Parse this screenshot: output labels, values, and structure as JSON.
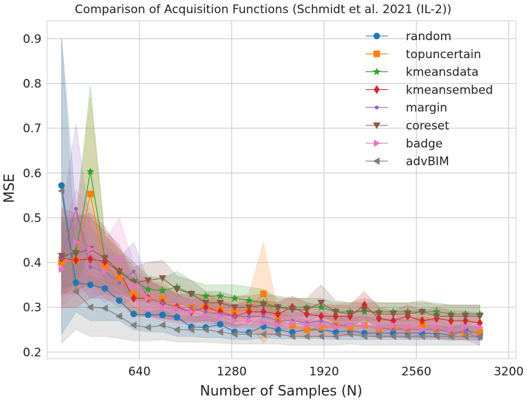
{
  "chart_data": {
    "type": "line",
    "title": "Comparison of Acquisition Functions (Schmidt et al. 2021 (IL-2))",
    "xlabel": "Number of Samples (N)",
    "ylabel": "MSE",
    "xlim": [
      0,
      3250
    ],
    "ylim": [
      0.185,
      0.94
    ],
    "xticks": [
      640,
      1280,
      1920,
      2560,
      3200
    ],
    "yticks": [
      0.2,
      0.3,
      0.4,
      0.5,
      0.6,
      0.7,
      0.8,
      0.9
    ],
    "grid": true,
    "legend_position": "top-right",
    "x": [
      100,
      200,
      300,
      400,
      500,
      600,
      700,
      800,
      900,
      1000,
      1100,
      1200,
      1300,
      1400,
      1500,
      1600,
      1700,
      1800,
      1900,
      2000,
      2100,
      2200,
      2300,
      2400,
      2500,
      2600,
      2700,
      2800,
      2900,
      3000
    ],
    "series": [
      {
        "name": "random",
        "color": "#1f77b4",
        "marker": "circle",
        "values": [
          0.572,
          0.355,
          0.35,
          0.342,
          0.315,
          0.285,
          0.283,
          0.283,
          0.278,
          0.256,
          0.255,
          0.262,
          0.245,
          0.244,
          0.257,
          0.25,
          0.244,
          0.25,
          0.25,
          0.245,
          0.248,
          0.242,
          0.243,
          0.242,
          0.243,
          0.242,
          0.242,
          0.238,
          0.248,
          0.24
        ],
        "lower": [
          0.24,
          0.29,
          0.27,
          0.27,
          0.27,
          0.25,
          0.245,
          0.245,
          0.235,
          0.235,
          0.232,
          0.232,
          0.228,
          0.228,
          0.232,
          0.23,
          0.23,
          0.23,
          0.23,
          0.228,
          0.228,
          0.228,
          0.228,
          0.228,
          0.228,
          0.228,
          0.228,
          0.226,
          0.228,
          0.226
        ],
        "upper": [
          0.905,
          0.52,
          0.42,
          0.4,
          0.36,
          0.33,
          0.32,
          0.32,
          0.31,
          0.28,
          0.28,
          0.29,
          0.26,
          0.26,
          0.28,
          0.27,
          0.26,
          0.27,
          0.27,
          0.26,
          0.265,
          0.26,
          0.26,
          0.26,
          0.26,
          0.26,
          0.26,
          0.255,
          0.265,
          0.255
        ]
      },
      {
        "name": "topuncertain",
        "color": "#ff7f0e",
        "marker": "square",
        "values": [
          0.4,
          0.405,
          0.553,
          0.39,
          0.365,
          0.33,
          0.32,
          0.318,
          0.3,
          0.3,
          0.3,
          0.295,
          0.29,
          0.295,
          0.33,
          0.27,
          0.26,
          0.25,
          0.255,
          0.26,
          0.255,
          0.26,
          0.25,
          0.255,
          0.25,
          0.26,
          0.25,
          0.245,
          0.24,
          0.245
        ],
        "lower": [
          0.33,
          0.33,
          0.36,
          0.32,
          0.31,
          0.28,
          0.28,
          0.28,
          0.27,
          0.27,
          0.27,
          0.265,
          0.26,
          0.26,
          0.22,
          0.25,
          0.24,
          0.23,
          0.235,
          0.24,
          0.235,
          0.24,
          0.23,
          0.235,
          0.23,
          0.24,
          0.23,
          0.228,
          0.226,
          0.228
        ],
        "upper": [
          0.47,
          0.48,
          0.77,
          0.46,
          0.42,
          0.38,
          0.36,
          0.355,
          0.33,
          0.33,
          0.33,
          0.325,
          0.32,
          0.33,
          0.445,
          0.29,
          0.28,
          0.27,
          0.275,
          0.28,
          0.275,
          0.28,
          0.27,
          0.275,
          0.27,
          0.28,
          0.27,
          0.262,
          0.255,
          0.262
        ]
      },
      {
        "name": "kmeansdata",
        "color": "#2ca02c",
        "marker": "star",
        "values": [
          0.41,
          0.425,
          0.603,
          0.41,
          0.382,
          0.36,
          0.34,
          0.337,
          0.345,
          0.33,
          0.325,
          0.325,
          0.32,
          0.315,
          0.31,
          0.3,
          0.3,
          0.3,
          0.3,
          0.29,
          0.29,
          0.29,
          0.29,
          0.29,
          0.29,
          0.29,
          0.29,
          0.285,
          0.285,
          0.285
        ],
        "lower": [
          0.34,
          0.35,
          0.43,
          0.36,
          0.34,
          0.32,
          0.31,
          0.31,
          0.31,
          0.3,
          0.3,
          0.3,
          0.295,
          0.29,
          0.285,
          0.28,
          0.28,
          0.28,
          0.28,
          0.27,
          0.27,
          0.27,
          0.27,
          0.27,
          0.27,
          0.27,
          0.27,
          0.265,
          0.265,
          0.265
        ],
        "upper": [
          0.49,
          0.5,
          0.795,
          0.46,
          0.43,
          0.4,
          0.37,
          0.365,
          0.38,
          0.36,
          0.35,
          0.35,
          0.35,
          0.345,
          0.34,
          0.32,
          0.32,
          0.32,
          0.32,
          0.31,
          0.31,
          0.31,
          0.31,
          0.31,
          0.31,
          0.31,
          0.31,
          0.305,
          0.305,
          0.305
        ]
      },
      {
        "name": "kmeansembed",
        "color": "#d62728",
        "marker": "diamond",
        "values": [
          0.41,
          0.405,
          0.408,
          0.402,
          0.38,
          0.32,
          0.32,
          0.31,
          0.3,
          0.29,
          0.3,
          0.29,
          0.28,
          0.29,
          0.29,
          0.285,
          0.3,
          0.285,
          0.28,
          0.28,
          0.28,
          0.305,
          0.275,
          0.27,
          0.28,
          0.27,
          0.275,
          0.27,
          0.27,
          0.265
        ],
        "lower": [
          0.3,
          0.3,
          0.32,
          0.33,
          0.32,
          0.28,
          0.28,
          0.275,
          0.27,
          0.265,
          0.27,
          0.265,
          0.255,
          0.265,
          0.265,
          0.26,
          0.275,
          0.26,
          0.255,
          0.255,
          0.255,
          0.275,
          0.25,
          0.248,
          0.255,
          0.248,
          0.25,
          0.248,
          0.248,
          0.245
        ],
        "upper": [
          0.52,
          0.51,
          0.5,
          0.47,
          0.44,
          0.36,
          0.36,
          0.345,
          0.33,
          0.315,
          0.33,
          0.315,
          0.305,
          0.315,
          0.315,
          0.31,
          0.325,
          0.31,
          0.305,
          0.305,
          0.305,
          0.335,
          0.3,
          0.292,
          0.305,
          0.292,
          0.3,
          0.292,
          0.292,
          0.285
        ]
      },
      {
        "name": "margin",
        "color": "#9467bd",
        "marker": "dot",
        "values": [
          0.41,
          0.52,
          0.39,
          0.38,
          0.355,
          0.38,
          0.32,
          0.31,
          0.3,
          0.3,
          0.29,
          0.285,
          0.28,
          0.28,
          0.28,
          0.27,
          0.27,
          0.265,
          0.27,
          0.26,
          0.26,
          0.26,
          0.255,
          0.25,
          0.25,
          0.25,
          0.25,
          0.245,
          0.245,
          0.23
        ],
        "lower": [
          0.32,
          0.36,
          0.32,
          0.32,
          0.3,
          0.32,
          0.28,
          0.275,
          0.27,
          0.27,
          0.265,
          0.26,
          0.255,
          0.255,
          0.255,
          0.25,
          0.25,
          0.245,
          0.25,
          0.24,
          0.24,
          0.24,
          0.235,
          0.232,
          0.232,
          0.232,
          0.232,
          0.228,
          0.228,
          0.215
        ],
        "upper": [
          0.5,
          0.71,
          0.48,
          0.44,
          0.41,
          0.445,
          0.36,
          0.345,
          0.33,
          0.33,
          0.315,
          0.31,
          0.305,
          0.305,
          0.305,
          0.29,
          0.29,
          0.285,
          0.29,
          0.28,
          0.28,
          0.28,
          0.275,
          0.27,
          0.27,
          0.27,
          0.27,
          0.262,
          0.262,
          0.245
        ]
      },
      {
        "name": "coreset",
        "color": "#8c564b",
        "marker": "triangle-down",
        "values": [
          0.415,
          0.42,
          0.43,
          0.41,
          0.38,
          0.355,
          0.36,
          0.365,
          0.34,
          0.33,
          0.31,
          0.31,
          0.3,
          0.3,
          0.305,
          0.3,
          0.295,
          0.295,
          0.31,
          0.29,
          0.285,
          0.295,
          0.285,
          0.285,
          0.285,
          0.29,
          0.28,
          0.28,
          0.28,
          0.28
        ],
        "lower": [
          0.33,
          0.34,
          0.35,
          0.34,
          0.33,
          0.32,
          0.32,
          0.325,
          0.31,
          0.3,
          0.285,
          0.285,
          0.275,
          0.275,
          0.28,
          0.275,
          0.27,
          0.27,
          0.28,
          0.265,
          0.26,
          0.27,
          0.26,
          0.26,
          0.26,
          0.265,
          0.255,
          0.255,
          0.255,
          0.255
        ],
        "upper": [
          0.5,
          0.5,
          0.51,
          0.48,
          0.43,
          0.39,
          0.4,
          0.405,
          0.37,
          0.36,
          0.335,
          0.335,
          0.325,
          0.325,
          0.33,
          0.325,
          0.32,
          0.32,
          0.35,
          0.315,
          0.31,
          0.32,
          0.31,
          0.31,
          0.31,
          0.315,
          0.305,
          0.305,
          0.305,
          0.305
        ]
      },
      {
        "name": "badge",
        "color": "#e377c2",
        "marker": "triangle-right",
        "values": [
          0.385,
          0.445,
          0.43,
          0.38,
          0.41,
          0.35,
          0.32,
          0.3,
          0.295,
          0.29,
          0.28,
          0.28,
          0.27,
          0.27,
          0.265,
          0.26,
          0.265,
          0.26,
          0.26,
          0.255,
          0.26,
          0.26,
          0.255,
          0.26,
          0.255,
          0.25,
          0.255,
          0.25,
          0.255,
          0.255
        ],
        "lower": [
          0.3,
          0.33,
          0.34,
          0.31,
          0.33,
          0.3,
          0.28,
          0.27,
          0.265,
          0.26,
          0.255,
          0.255,
          0.245,
          0.245,
          0.24,
          0.235,
          0.24,
          0.235,
          0.235,
          0.232,
          0.235,
          0.235,
          0.232,
          0.235,
          0.232,
          0.228,
          0.232,
          0.228,
          0.232,
          0.232
        ],
        "upper": [
          0.47,
          0.56,
          0.52,
          0.45,
          0.5,
          0.4,
          0.36,
          0.33,
          0.325,
          0.32,
          0.305,
          0.305,
          0.295,
          0.295,
          0.29,
          0.285,
          0.29,
          0.285,
          0.285,
          0.278,
          0.285,
          0.285,
          0.278,
          0.285,
          0.278,
          0.272,
          0.278,
          0.272,
          0.278,
          0.278
        ]
      },
      {
        "name": "advBIM",
        "color": "#7f7f7f",
        "marker": "triangle-left",
        "values": [
          0.56,
          0.335,
          0.3,
          0.298,
          0.28,
          0.26,
          0.255,
          0.26,
          0.25,
          0.25,
          0.25,
          0.245,
          0.24,
          0.24,
          0.24,
          0.24,
          0.235,
          0.235,
          0.235,
          0.235,
          0.24,
          0.235,
          0.235,
          0.235,
          0.235,
          0.235,
          0.235,
          0.235,
          0.235,
          0.235
        ],
        "lower": [
          0.22,
          0.25,
          0.235,
          0.235,
          0.23,
          0.225,
          0.225,
          0.228,
          0.222,
          0.222,
          0.222,
          0.22,
          0.218,
          0.218,
          0.218,
          0.218,
          0.215,
          0.215,
          0.215,
          0.215,
          0.218,
          0.215,
          0.215,
          0.215,
          0.215,
          0.215,
          0.215,
          0.215,
          0.215,
          0.215
        ],
        "upper": [
          0.9,
          0.42,
          0.37,
          0.36,
          0.33,
          0.3,
          0.29,
          0.295,
          0.28,
          0.28,
          0.28,
          0.27,
          0.262,
          0.262,
          0.262,
          0.262,
          0.255,
          0.255,
          0.255,
          0.255,
          0.262,
          0.255,
          0.255,
          0.255,
          0.255,
          0.255,
          0.255,
          0.255,
          0.255,
          0.255
        ]
      }
    ]
  }
}
